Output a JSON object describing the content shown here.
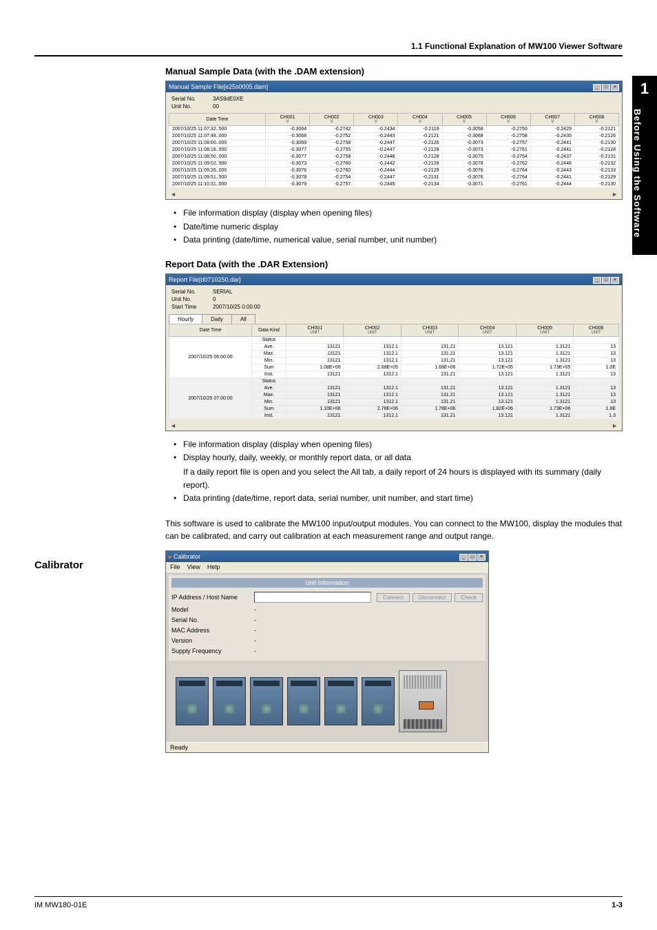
{
  "header": {
    "breadcrumb": "1.1  Functional Explanation of MW100 Viewer Software"
  },
  "sidebar": {
    "chapter": "1",
    "title": "Before Using the Software"
  },
  "section1": {
    "heading": "Manual Sample Data (with the .DAM extension)",
    "win_title": "Manual Sample File[e25s0005.dam]",
    "serial_lbl": "Serial No.",
    "serial_val": "3AS9dE0XE",
    "unit_lbl": "Unit No.",
    "unit_val": "00",
    "cols": [
      "Date Time",
      "CH001",
      "CH002",
      "CH003",
      "CH004",
      "CH005",
      "CH006",
      "CH007",
      "CH008"
    ],
    "colsub": [
      "",
      "V",
      "V",
      "V",
      "V",
      "V",
      "V",
      "V",
      "V"
    ],
    "rows": [
      [
        "2007/10/25 11:07:32..500",
        "-0.3064",
        "-0.2742",
        "-0.2434",
        "-0.2119",
        "-0.3058",
        "-0.2750",
        "-0.2429",
        "-0.2121"
      ],
      [
        "2007/10/25 11:07:48..000",
        "-0.3068",
        "-0.2752",
        "-0.2443",
        "-0.2121",
        "-0.3068",
        "-0.2758",
        "-0.2435",
        "-0.2126"
      ],
      [
        "2007/10/25 11:08:00..000",
        "-0.3069",
        "-0.2758",
        "-0.2447",
        "-0.2126",
        "-0.3073",
        "-0.2757",
        "-0.2441",
        "-0.2130"
      ],
      [
        "2007/10/25 11:08:18..500",
        "-0.3077",
        "-0.2755",
        "-0.2447",
        "-0.2128",
        "-0.3073",
        "-0.2761",
        "-0.2441",
        "-0.2128"
      ],
      [
        "2007/10/25 11:08:50..000",
        "-0.3077",
        "-0.2758",
        "-0.2448",
        "-0.2128",
        "-0.3075",
        "-0.2764",
        "-0.2437",
        "-0.2131"
      ],
      [
        "2007/10/25 11:09:02..500",
        "-0.3073",
        "-0.2760",
        "-0.2442",
        "-0.2128",
        "-0.3078",
        "-0.2762",
        "-0.2446",
        "-0.2132"
      ],
      [
        "2007/10/25 11:09:26..000",
        "-0.3076",
        "-0.2760",
        "-0.2444",
        "-0.2129",
        "-0.3076",
        "-0.2764",
        "-0.2443",
        "-0.2133"
      ],
      [
        "2007/10/25 11:09:51..500",
        "-0.3078",
        "-0.2754",
        "-0.2447",
        "-0.2131",
        "-0.3076",
        "-0.2764",
        "-0.2441",
        "-0.2129"
      ],
      [
        "2007/10/25 11:10:31..500",
        "-0.3079",
        "-0.2757",
        "-0.2445",
        "-0.2134",
        "-0.3071",
        "-0.2761",
        "-0.2444",
        "-0.2130"
      ]
    ],
    "bullets": [
      "File information display (display when opening files)",
      "Date/time numeric display",
      "Data printing (date/time, numerical value, serial number, unit number)"
    ]
  },
  "section2": {
    "heading": "Report Data (with the .DAR Extension)",
    "win_title": "Report File[d0710250.dar]",
    "serial_lbl": "Serial No.",
    "serial_val": "SERIAL",
    "unit_lbl": "Unit No.",
    "unit_val": "0",
    "start_lbl": "Start Time",
    "start_val": "2007/10/25 0:00:00",
    "tabs": [
      "Hourly",
      "Daily",
      "All"
    ],
    "cols": [
      "Date Time",
      "Data Kind",
      "CH001",
      "CH002",
      "CH003",
      "CH004",
      "CH005",
      "CH006"
    ],
    "colsub": [
      "",
      "",
      "UNIT",
      "UNIT",
      "UNIT",
      "UNIT",
      "UNIT",
      "UNIT"
    ],
    "groups": [
      {
        "dt": "2007/10/25 06:00:00",
        "rows": [
          [
            "Status",
            "",
            "",
            "",
            "",
            "",
            ""
          ],
          [
            "Ave.",
            "13121",
            "1312.1",
            "131.21",
            "13.121",
            "1.3121",
            "13"
          ],
          [
            "Max.",
            "13121",
            "1312.1",
            "131.21",
            "13.121",
            "1.3121",
            "13"
          ],
          [
            "Min.",
            "13121",
            "1312.1",
            "131.21",
            "13.121",
            "1.3121",
            "13"
          ],
          [
            "Sum",
            "1.08E+06",
            "2.68E+05",
            "1.68E+06",
            "1.72E+05",
            "1.73E+05",
            "1.0E"
          ],
          [
            "Inst.",
            "13121",
            "1312.1",
            "131.21",
            "13.121",
            "1.3121",
            "13"
          ]
        ]
      },
      {
        "dt": "2007/10/25 07:00:00",
        "rows": [
          [
            "Status",
            "",
            "",
            "",
            "",
            "",
            ""
          ],
          [
            "Ave.",
            "13121",
            "1312.1",
            "131.21",
            "13.121",
            "1.3121",
            "13"
          ],
          [
            "Max.",
            "13121",
            "1312.1",
            "131.21",
            "13.121",
            "1.3121",
            "13"
          ],
          [
            "Min.",
            "13121",
            "1312.1",
            "131.21",
            "13.121",
            "1.3121",
            "13"
          ],
          [
            "Sum",
            "1.10E+06",
            "2.78E+06",
            "1.78E+06",
            "1.82E+06",
            "1.73E+06",
            "1.8E"
          ],
          [
            "Inst.",
            "13121",
            "1312.1",
            "131.21",
            "13.121",
            "1.3121",
            "1.3"
          ]
        ]
      }
    ],
    "bullets": [
      {
        "t": "File information display (display when opening files)"
      },
      {
        "t": "Display hourly, daily, weekly, or monthly report data, or all data",
        "sub": "If a daily report file is open and you select the All tab, a daily report of 24 hours is displayed with its summary (daily report)."
      },
      {
        "t": "Data printing (date/time, report data, serial number, unit number, and start time)"
      }
    ]
  },
  "section3": {
    "side_heading": "Calibrator",
    "para": "This software is used to calibrate the MW100 input/output modules. You can connect to the MW100, display the modules that can be calibrated, and carry out calibration at each measurement range and output range.",
    "win_title": "Calibrator",
    "menus": [
      "File",
      "View",
      "Help"
    ],
    "panel_title": "Unit Information",
    "fields": [
      {
        "lbl": "IP Address / Host Name",
        "input": true,
        "btns": [
          "Connect",
          "Disconnect",
          "Check"
        ]
      },
      {
        "lbl": "Model",
        "val": "-"
      },
      {
        "lbl": "Serial No.",
        "val": "-"
      },
      {
        "lbl": "MAC Address",
        "val": "-"
      },
      {
        "lbl": "Version",
        "val": "-"
      },
      {
        "lbl": "Supply Frequency",
        "val": "-"
      }
    ],
    "status": "Ready"
  },
  "footer": {
    "doc": "IM MW180-01E",
    "page": "1-3"
  }
}
